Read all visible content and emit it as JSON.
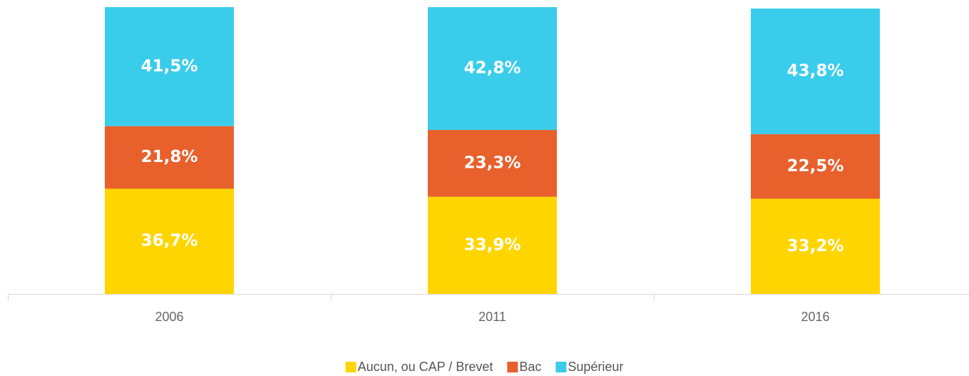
{
  "chart_data": {
    "type": "stacked-bar",
    "categories": [
      "2006",
      "2011",
      "2016"
    ],
    "series": [
      {
        "name": "Aucun, ou CAP / Brevet",
        "color": "#FFD500",
        "values": [
          36.7,
          33.9,
          33.2
        ],
        "value_labels": [
          "36,7%",
          "33,9%",
          "33,2%"
        ]
      },
      {
        "name": "Bac",
        "color": "#E8602C",
        "values": [
          21.8,
          23.3,
          22.5
        ],
        "value_labels": [
          "21,8%",
          "23,3%",
          "22,5%"
        ]
      },
      {
        "name": "Supérieur",
        "color": "#3ACDEB",
        "values": [
          41.5,
          42.8,
          43.8
        ],
        "value_labels": [
          "41,5%",
          "42,8%",
          "43,8%"
        ]
      }
    ],
    "ylim": [
      0,
      100
    ],
    "legend": "bottom"
  }
}
